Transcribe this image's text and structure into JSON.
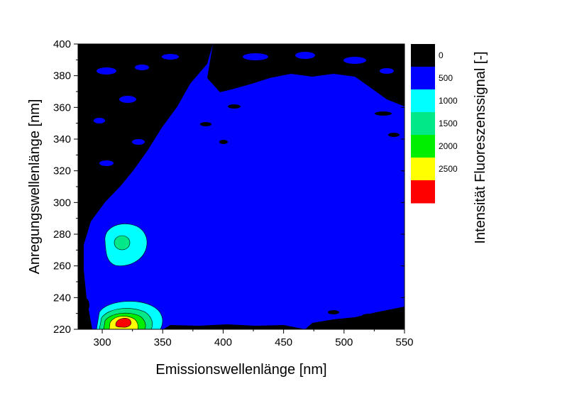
{
  "chart_data": {
    "type": "heatmap",
    "xlabel": "Emissionswellenlänge [nm]",
    "ylabel": "Anregungswellenlänge [nm]",
    "xlim": [
      280,
      550
    ],
    "ylim": [
      220,
      400
    ],
    "xticks": [
      300,
      350,
      400,
      450,
      500,
      550
    ],
    "yticks": [
      220,
      240,
      260,
      280,
      300,
      320,
      340,
      360,
      380,
      400
    ],
    "colorbar": {
      "title": "Intensität Fluoreszenssignal [-]",
      "levels": [
        0,
        500,
        1000,
        1500,
        2000,
        2500
      ],
      "colors": [
        "#000000",
        "#0000FF",
        "#00FFFF",
        "#00E888",
        "#00EE00",
        "#FFFF00",
        "#FF0000"
      ]
    },
    "peaks": [
      {
        "em": 316,
        "ex": 225,
        "intensity": 2700
      },
      {
        "em": 316,
        "ex": 275,
        "intensity": 1200
      }
    ],
    "background_level": 200
  }
}
